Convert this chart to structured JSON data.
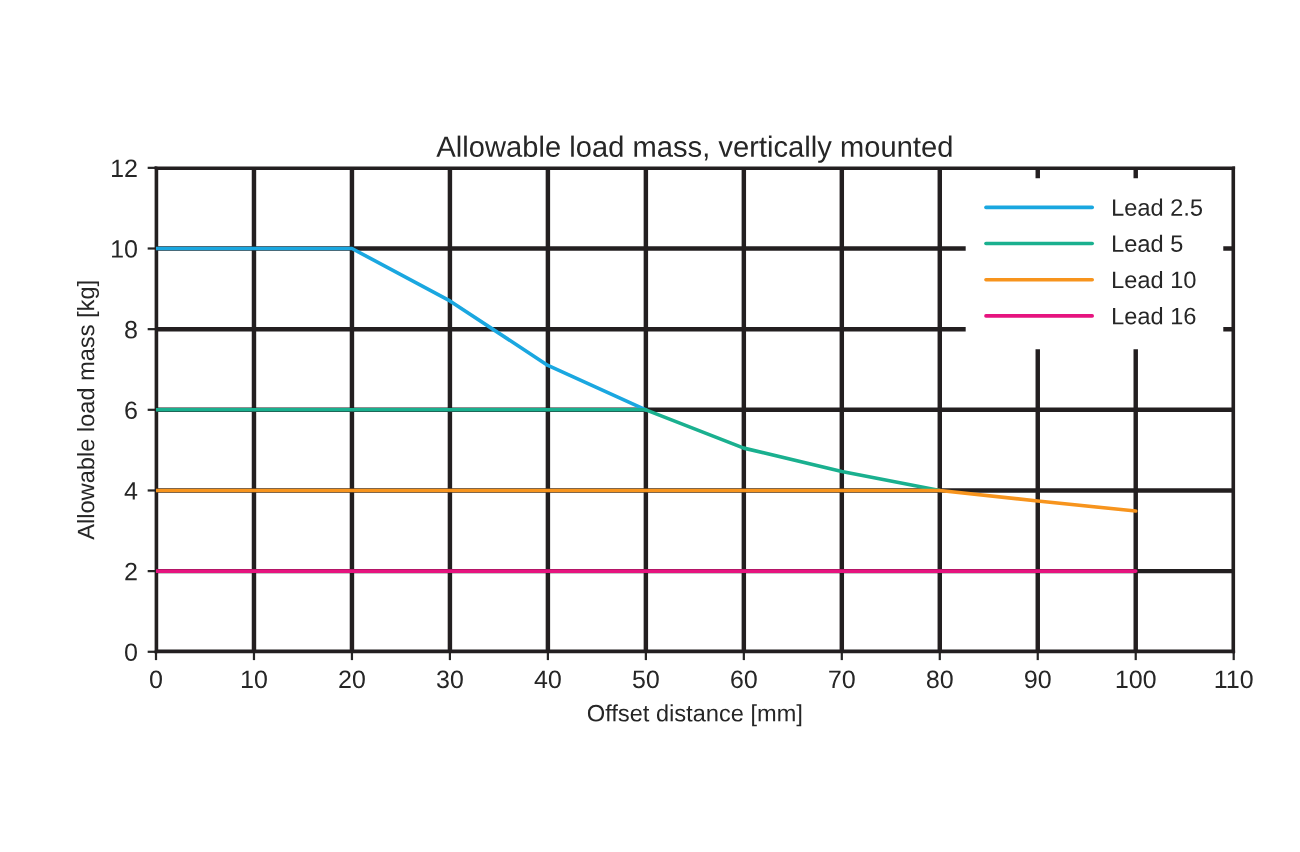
{
  "chart_data": {
    "type": "line",
    "title": "Allowable load mass, vertically mounted",
    "xlabel": "Offset distance [mm]",
    "ylabel": "Allowable load mass [kg]",
    "series": [
      {
        "name": "Lead 2.5",
        "color": "#1aa7e0",
        "x": [
          0,
          20,
          30,
          40,
          50
        ],
        "values": [
          10,
          10,
          8.7,
          7.1,
          6
        ]
      },
      {
        "name": "Lead 5",
        "color": "#1ab08f",
        "x": [
          0,
          50,
          60,
          70,
          80
        ],
        "values": [
          6,
          6,
          5.05,
          4.47,
          4
        ]
      },
      {
        "name": "Lead 10",
        "color": "#f7941d",
        "x": [
          0,
          80,
          90,
          100
        ],
        "values": [
          4,
          4,
          3.74,
          3.49
        ]
      },
      {
        "name": "Lead 16",
        "color": "#e6147f",
        "x": [
          0,
          100
        ],
        "values": [
          2,
          2
        ]
      }
    ],
    "xlim": [
      0,
      110
    ],
    "xticks": [
      0,
      10,
      20,
      30,
      40,
      50,
      60,
      70,
      80,
      90,
      100,
      110
    ],
    "ylim": [
      0,
      12
    ],
    "yticks": [
      0,
      2,
      4,
      6,
      8,
      10,
      12
    ],
    "grid": true,
    "legend": "top right",
    "marker": "none",
    "line_style": "solid"
  }
}
